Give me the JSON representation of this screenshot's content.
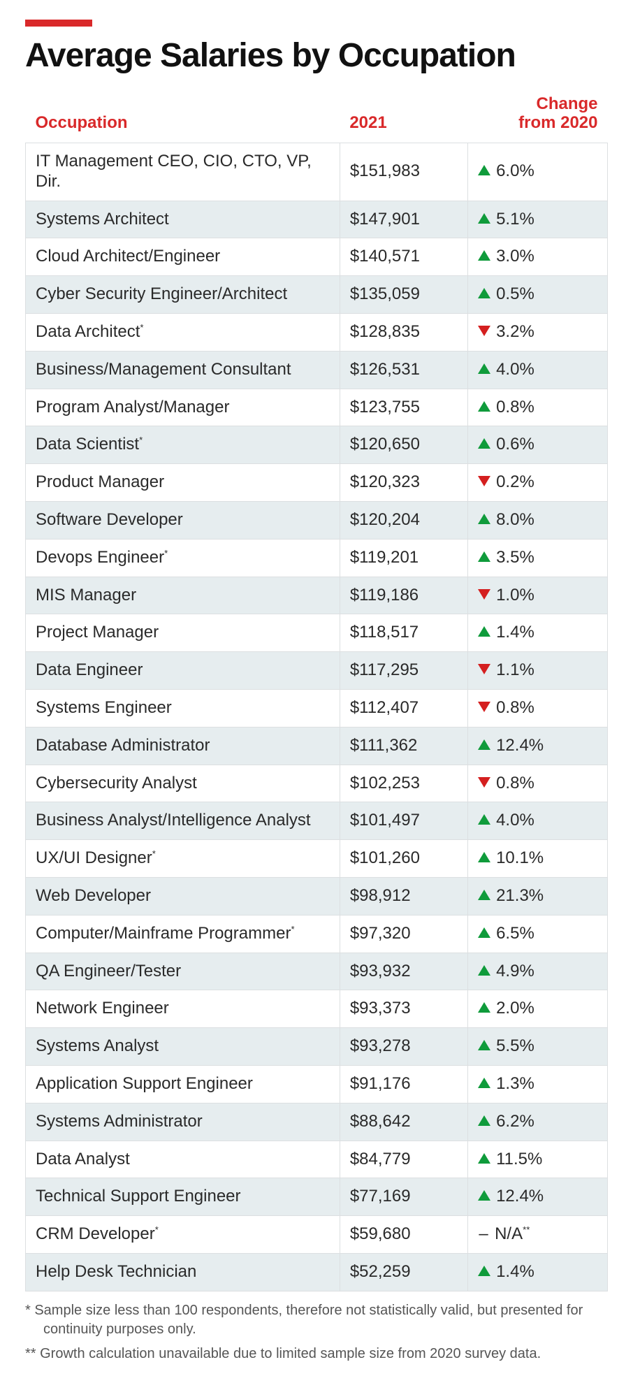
{
  "title": "Average Salaries by Occupation",
  "colors": {
    "accent": "#d9292a",
    "up": "#0f9b3b",
    "down": "#d41f1f",
    "row_alt_bg": "#e6edef",
    "border": "#dcdfe1",
    "text": "#2a2a2a",
    "footnote": "#555555"
  },
  "table": {
    "type": "table",
    "columns": [
      {
        "key": "occupation",
        "header": "Occupation",
        "width_pct": 54,
        "align": "left"
      },
      {
        "key": "salary_2021",
        "header": "2021",
        "width_pct": 22,
        "align": "left"
      },
      {
        "key": "change",
        "header": "Change from 2020",
        "width_pct": 24,
        "align": "right"
      }
    ],
    "header_fontsize": 24,
    "cell_fontsize": 24,
    "rows": [
      {
        "occupation": "IT Management CEO, CIO, CTO, VP, Dir.",
        "note": "",
        "salary": "$151,983",
        "dir": "up",
        "change": "6.0%",
        "change_note": ""
      },
      {
        "occupation": "Systems Architect",
        "note": "",
        "salary": "$147,901",
        "dir": "up",
        "change": "5.1%",
        "change_note": ""
      },
      {
        "occupation": "Cloud Architect/Engineer",
        "note": "",
        "salary": "$140,571",
        "dir": "up",
        "change": "3.0%",
        "change_note": ""
      },
      {
        "occupation": "Cyber Security Engineer/Architect",
        "note": "",
        "salary": "$135,059",
        "dir": "up",
        "change": "0.5%",
        "change_note": ""
      },
      {
        "occupation": "Data Architect",
        "note": "*",
        "salary": "$128,835",
        "dir": "down",
        "change": "3.2%",
        "change_note": ""
      },
      {
        "occupation": "Business/Management Consultant",
        "note": "",
        "salary": "$126,531",
        "dir": "up",
        "change": "4.0%",
        "change_note": ""
      },
      {
        "occupation": "Program Analyst/Manager",
        "note": "",
        "salary": "$123,755",
        "dir": "up",
        "change": "0.8%",
        "change_note": ""
      },
      {
        "occupation": "Data Scientist",
        "note": "*",
        "salary": "$120,650",
        "dir": "up",
        "change": "0.6%",
        "change_note": ""
      },
      {
        "occupation": "Product Manager",
        "note": "",
        "salary": "$120,323",
        "dir": "down",
        "change": "0.2%",
        "change_note": ""
      },
      {
        "occupation": "Software Developer",
        "note": "",
        "salary": "$120,204",
        "dir": "up",
        "change": "8.0%",
        "change_note": ""
      },
      {
        "occupation": "Devops Engineer",
        "note": "*",
        "salary": "$119,201",
        "dir": "up",
        "change": "3.5%",
        "change_note": ""
      },
      {
        "occupation": "MIS Manager",
        "note": "",
        "salary": "$119,186",
        "dir": "down",
        "change": "1.0%",
        "change_note": ""
      },
      {
        "occupation": "Project Manager",
        "note": "",
        "salary": "$118,517",
        "dir": "up",
        "change": "1.4%",
        "change_note": ""
      },
      {
        "occupation": "Data Engineer",
        "note": "",
        "salary": "$117,295",
        "dir": "down",
        "change": "1.1%",
        "change_note": ""
      },
      {
        "occupation": "Systems Engineer",
        "note": "",
        "salary": "$112,407",
        "dir": "down",
        "change": "0.8%",
        "change_note": ""
      },
      {
        "occupation": "Database Administrator",
        "note": "",
        "salary": "$111,362",
        "dir": "up",
        "change": "12.4%",
        "change_note": ""
      },
      {
        "occupation": "Cybersecurity Analyst",
        "note": "",
        "salary": "$102,253",
        "dir": "down",
        "change": "0.8%",
        "change_note": ""
      },
      {
        "occupation": "Business Analyst/Intelligence Analyst",
        "note": "",
        "salary": "$101,497",
        "dir": "up",
        "change": "4.0%",
        "change_note": ""
      },
      {
        "occupation": "UX/UI Designer",
        "note": "*",
        "salary": "$101,260",
        "dir": "up",
        "change": "10.1%",
        "change_note": ""
      },
      {
        "occupation": "Web Developer",
        "note": "",
        "salary": "$98,912",
        "dir": "up",
        "change": "21.3%",
        "change_note": ""
      },
      {
        "occupation": "Computer/Mainframe Programmer",
        "note": "*",
        "salary": "$97,320",
        "dir": "up",
        "change": "6.5%",
        "change_note": ""
      },
      {
        "occupation": "QA Engineer/Tester",
        "note": "",
        "salary": "$93,932",
        "dir": "up",
        "change": "4.9%",
        "change_note": ""
      },
      {
        "occupation": "Network Engineer",
        "note": "",
        "salary": "$93,373",
        "dir": "up",
        "change": "2.0%",
        "change_note": ""
      },
      {
        "occupation": "Systems Analyst",
        "note": "",
        "salary": "$93,278",
        "dir": "up",
        "change": "5.5%",
        "change_note": ""
      },
      {
        "occupation": "Application Support Engineer",
        "note": "",
        "salary": "$91,176",
        "dir": "up",
        "change": "1.3%",
        "change_note": ""
      },
      {
        "occupation": "Systems Administrator",
        "note": "",
        "salary": "$88,642",
        "dir": "up",
        "change": "6.2%",
        "change_note": ""
      },
      {
        "occupation": "Data Analyst",
        "note": "",
        "salary": "$84,779",
        "dir": "up",
        "change": "11.5%",
        "change_note": ""
      },
      {
        "occupation": "Technical Support Engineer",
        "note": "",
        "salary": "$77,169",
        "dir": "up",
        "change": "12.4%",
        "change_note": ""
      },
      {
        "occupation": "CRM Developer",
        "note": "*",
        "salary": "$59,680",
        "dir": "none",
        "change": "N/A",
        "change_note": "**"
      },
      {
        "occupation": "Help Desk Technician",
        "note": "",
        "salary": "$52,259",
        "dir": "up",
        "change": "1.4%",
        "change_note": ""
      }
    ]
  },
  "footnotes": {
    "n1": "* Sample size less than 100 respondents, therefore not statistically valid, but presented for continuity purposes only.",
    "n2": "** Growth calculation unavailable due to limited sample size from 2020 survey data."
  }
}
